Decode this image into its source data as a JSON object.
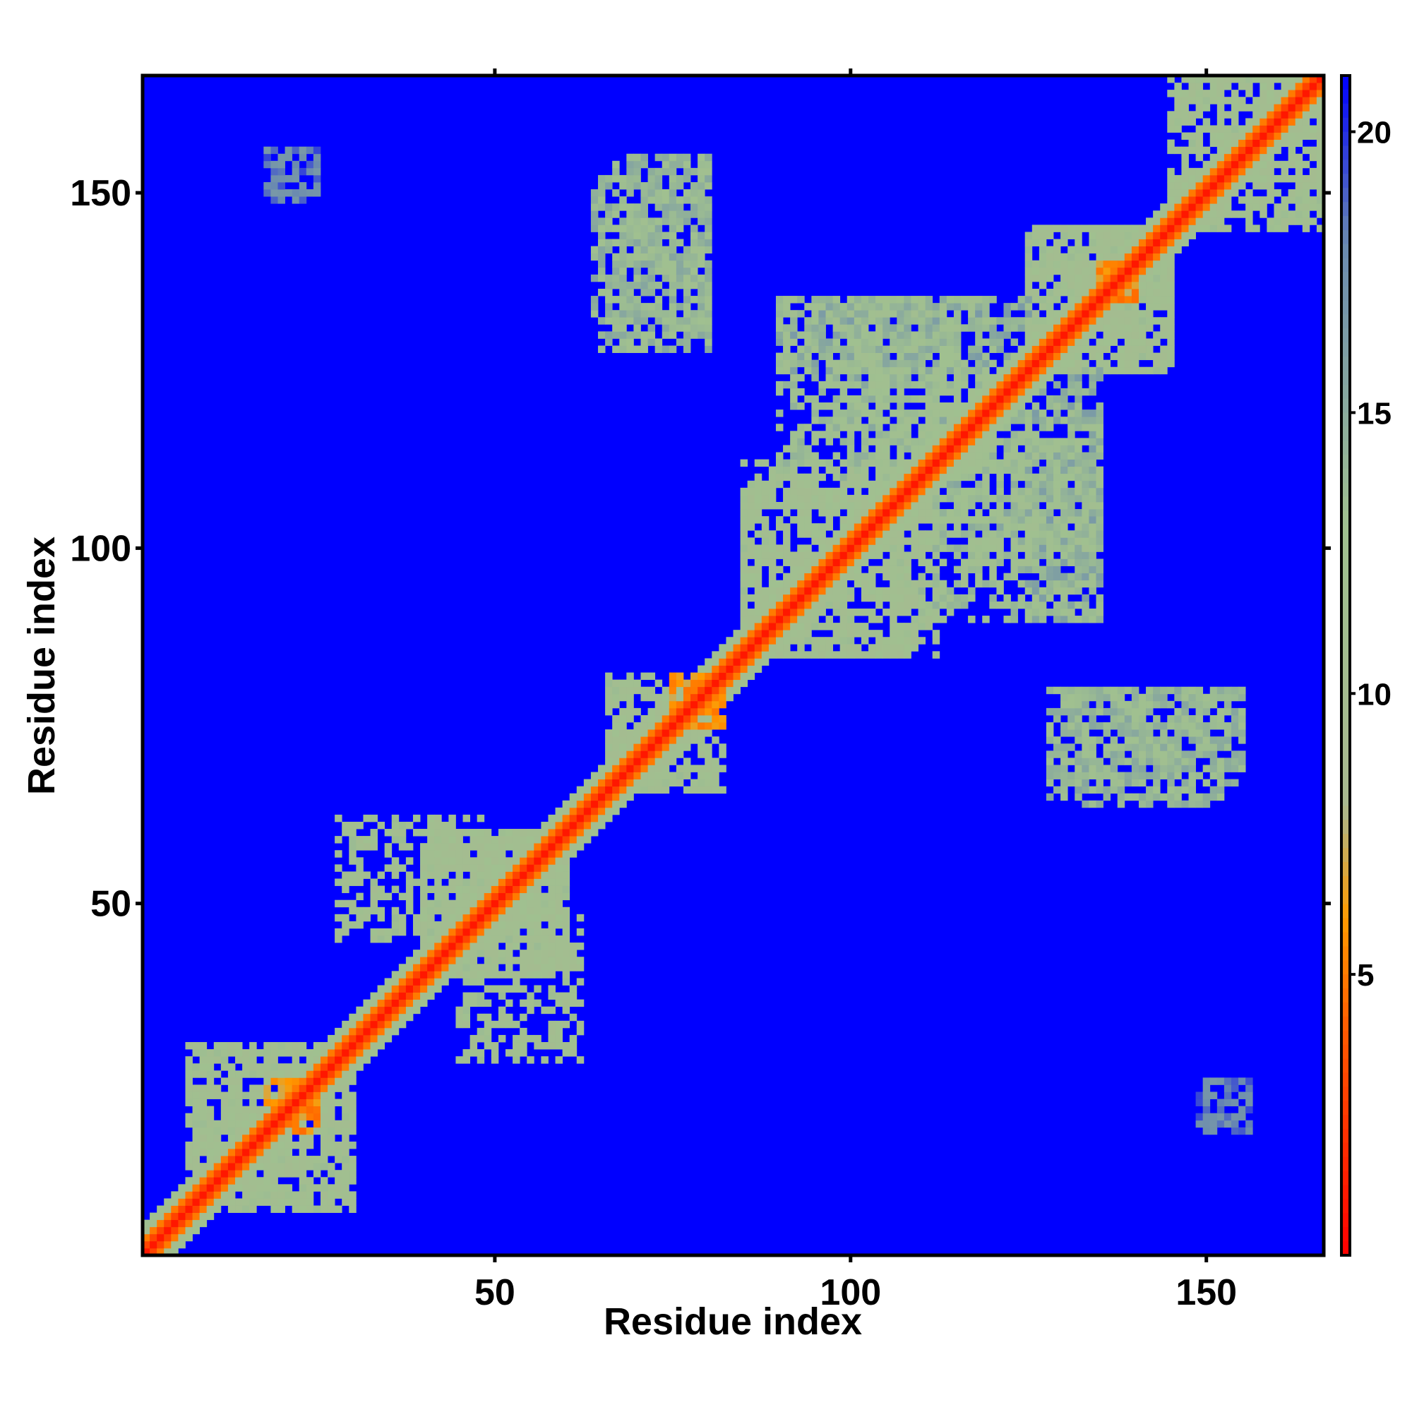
{
  "chart_data": {
    "type": "heatmap",
    "title": "",
    "xlabel": "Residue index",
    "ylabel": "Residue index",
    "xlim": [
      1,
      166
    ],
    "ylim": [
      1,
      166
    ],
    "n_residues": 166,
    "x_ticks": [
      50,
      100,
      150
    ],
    "y_ticks": [
      50,
      100,
      150
    ],
    "x_tick_labels": [
      "50",
      "100",
      "150"
    ],
    "y_tick_labels": [
      "50",
      "100",
      "150"
    ],
    "colorbar": {
      "range": [
        0,
        21
      ],
      "ticks": [
        5,
        10,
        15,
        20
      ],
      "tick_labels": [
        "5",
        "10",
        "15",
        "20"
      ],
      "colors": [
        {
          "value": 0,
          "color": "#ff0000"
        },
        {
          "value": 4,
          "color": "#ff5a00"
        },
        {
          "value": 6,
          "color": "#ff9a00"
        },
        {
          "value": 8,
          "color": "#a8b890"
        },
        {
          "value": 13,
          "color": "#a0c090"
        },
        {
          "value": 18,
          "color": "#6a8ab0"
        },
        {
          "value": 21,
          "color": "#0000ff"
        }
      ]
    },
    "background_value": 21,
    "diagonal_band": [
      {
        "offset": 0,
        "value": 1
      },
      {
        "offset": 1,
        "value": 3
      },
      {
        "offset": 2,
        "value": 5
      },
      {
        "offset": 3,
        "value": 11
      },
      {
        "offset": 4,
        "value": 13
      }
    ],
    "contact_regions": [
      {
        "x": [
          7,
          30
        ],
        "y": [
          7,
          30
        ],
        "value": 12
      },
      {
        "x": [
          18,
          25
        ],
        "y": [
          18,
          25
        ],
        "value": 6
      },
      {
        "x": [
          40,
          60
        ],
        "y": [
          40,
          60
        ],
        "value": 12
      },
      {
        "x": [
          45,
          62
        ],
        "y": [
          28,
          48
        ],
        "value": 12
      },
      {
        "x": [
          66,
          80
        ],
        "y": [
          66,
          82
        ],
        "value": 12
      },
      {
        "x": [
          75,
          82
        ],
        "y": [
          75,
          82
        ],
        "value": 6
      },
      {
        "x": [
          85,
          110
        ],
        "y": [
          85,
          112
        ],
        "value": 12
      },
      {
        "x": [
          100,
          115
        ],
        "y": [
          112,
          135
        ],
        "value": 14
      },
      {
        "x": [
          110,
          135
        ],
        "y": [
          90,
          120
        ],
        "value": 13
      },
      {
        "x": [
          125,
          145
        ],
        "y": [
          125,
          145
        ],
        "value": 12
      },
      {
        "x": [
          135,
          140
        ],
        "y": [
          135,
          140
        ],
        "value": 6
      },
      {
        "x": [
          145,
          166
        ],
        "y": [
          145,
          166
        ],
        "value": 12
      },
      {
        "x": [
          64,
          80
        ],
        "y": [
          128,
          152
        ],
        "value": 14
      },
      {
        "x": [
          130,
          155
        ],
        "y": [
          67,
          80
        ],
        "value": 14
      },
      {
        "x": [
          90,
          125
        ],
        "y": [
          125,
          135
        ],
        "value": 15
      },
      {
        "x": [
          18,
          25
        ],
        "y": [
          150,
          156
        ],
        "value": 18
      },
      {
        "x": [
          149,
          156
        ],
        "y": [
          18,
          25
        ],
        "value": 18
      }
    ]
  }
}
